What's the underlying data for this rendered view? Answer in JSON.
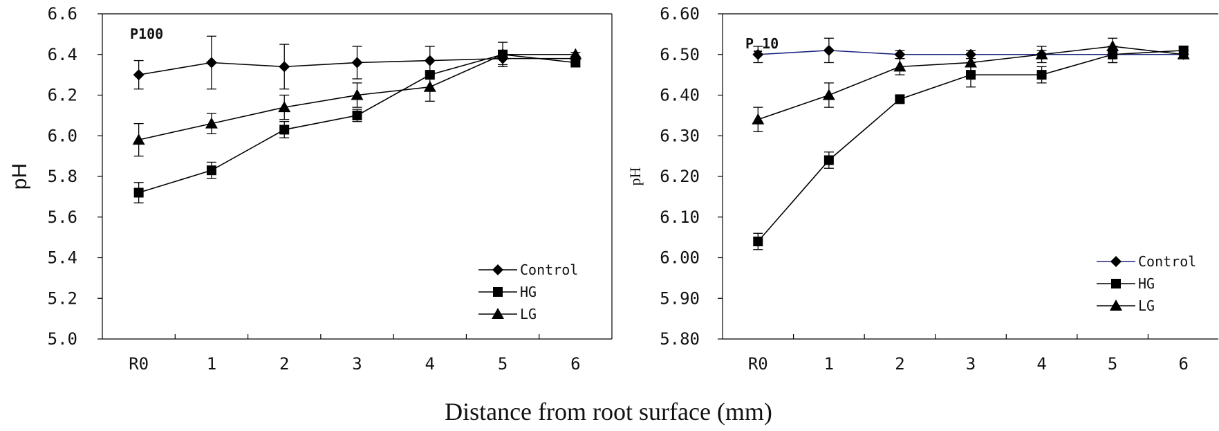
{
  "xlabel": "Distance from root surface (mm)",
  "chart_data": [
    {
      "type": "line",
      "panel_label": "P100",
      "ylabel": "pH",
      "categories": [
        "R0",
        "1",
        "2",
        "3",
        "4",
        "5",
        "6"
      ],
      "ylim": [
        5.0,
        6.6
      ],
      "yticks": [
        "5.0",
        "5.2",
        "5.4",
        "5.6",
        "5.8",
        "6.0",
        "6.2",
        "6.4",
        "6.6"
      ],
      "grid": false,
      "legend_position": "bottom-right",
      "series": [
        {
          "name": "Control",
          "marker": "diamond",
          "color": "#000000",
          "values": [
            6.3,
            6.36,
            6.34,
            6.36,
            6.37,
            6.38,
            6.38
          ],
          "errors": [
            0.07,
            0.13,
            0.11,
            0.08,
            0.07,
            0.03,
            0.01
          ]
        },
        {
          "name": "HG",
          "marker": "square",
          "color": "#000000",
          "values": [
            5.72,
            5.83,
            6.03,
            6.1,
            6.3,
            6.4,
            6.36
          ],
          "errors": [
            0.05,
            0.04,
            0.04,
            0.03,
            0.0,
            0.06,
            0.02
          ]
        },
        {
          "name": "LG",
          "marker": "triangle",
          "color": "#000000",
          "values": [
            5.98,
            6.06,
            6.14,
            6.2,
            6.24,
            6.4,
            6.4
          ],
          "errors": [
            0.08,
            0.05,
            0.06,
            0.06,
            0.07,
            0.01,
            0.01
          ]
        }
      ]
    },
    {
      "type": "line",
      "panel_label": "P_10",
      "ylabel": "pH",
      "categories": [
        "R0",
        "1",
        "2",
        "3",
        "4",
        "5",
        "6"
      ],
      "ylim": [
        5.8,
        6.6
      ],
      "yticks": [
        "5.80",
        "5.90",
        "6.00",
        "6.10",
        "6.20",
        "6.30",
        "6.40",
        "6.50",
        "6.60"
      ],
      "grid": false,
      "legend_position": "bottom-right",
      "series": [
        {
          "name": "Control",
          "marker": "diamond",
          "color": "#1a237e",
          "values": [
            6.5,
            6.51,
            6.5,
            6.5,
            6.5,
            6.5,
            6.5
          ],
          "errors": [
            0.02,
            0.03,
            0.01,
            0.01,
            0.01,
            0.02,
            0.01
          ]
        },
        {
          "name": "HG",
          "marker": "square",
          "color": "#000000",
          "values": [
            6.04,
            6.24,
            6.39,
            6.45,
            6.45,
            6.5,
            6.51
          ],
          "errors": [
            0.02,
            0.02,
            0.01,
            0.03,
            0.02,
            0.02,
            0.01
          ]
        },
        {
          "name": "LG",
          "marker": "triangle",
          "color": "#000000",
          "values": [
            6.34,
            6.4,
            6.47,
            6.48,
            6.5,
            6.52,
            6.5
          ],
          "errors": [
            0.03,
            0.03,
            0.02,
            0.02,
            0.02,
            0.02,
            0.01
          ]
        }
      ]
    }
  ]
}
